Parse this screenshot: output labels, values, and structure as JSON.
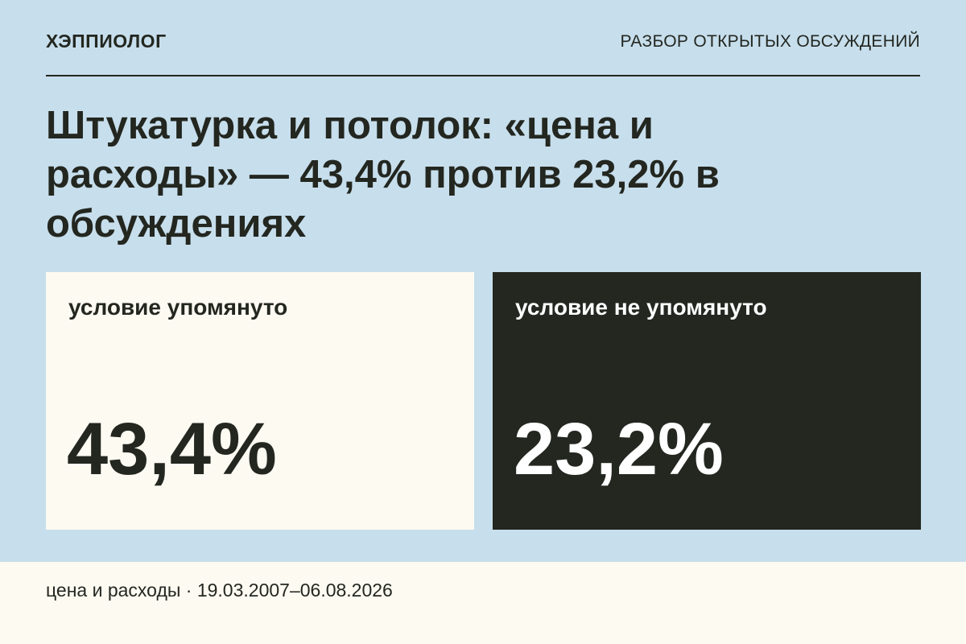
{
  "header": {
    "brand": "ХЭППИОЛОГ",
    "section": "РАЗБОР ОТКРЫТЫХ ОБСУЖДЕНИЙ"
  },
  "title": "Штукатурка и потолок: «цена и расходы» — 43,4% против 23,2% в обсуждениях",
  "cards": [
    {
      "label": "условие упомянуто",
      "value": "43,4%"
    },
    {
      "label": "условие не упомянуто",
      "value": "23,2%"
    }
  ],
  "footer": "цена и расходы · 19.03.2007–06.08.2026"
}
